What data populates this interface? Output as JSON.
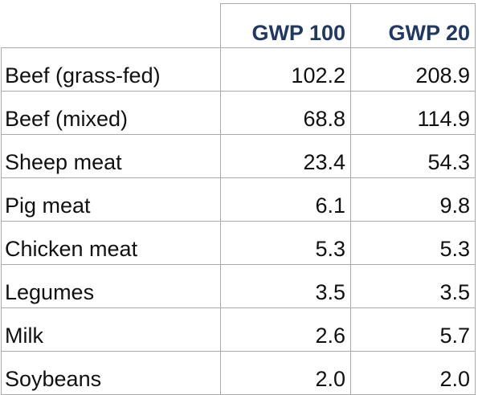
{
  "table": {
    "headers": [
      "",
      "GWP 100",
      "GWP 20"
    ],
    "rows": [
      {
        "label": "Beef (grass-fed)",
        "gwp100": "102.2",
        "gwp20": "208.9"
      },
      {
        "label": "Beef (mixed)",
        "gwp100": "68.8",
        "gwp20": "114.9"
      },
      {
        "label": "Sheep meat",
        "gwp100": "23.4",
        "gwp20": "54.3"
      },
      {
        "label": "Pig meat",
        "gwp100": "6.1",
        "gwp20": "9.8"
      },
      {
        "label": "Chicken meat",
        "gwp100": "5.3",
        "gwp20": "5.3"
      },
      {
        "label": "Legumes",
        "gwp100": "3.5",
        "gwp20": "3.5"
      },
      {
        "label": "Milk",
        "gwp100": "2.6",
        "gwp20": "5.7"
      },
      {
        "label": "Soybeans",
        "gwp100": "2.0",
        "gwp20": "2.0"
      }
    ]
  },
  "colors": {
    "header_text": "#1f3864",
    "body_text": "#111111",
    "grid": "#a9a9a9"
  }
}
